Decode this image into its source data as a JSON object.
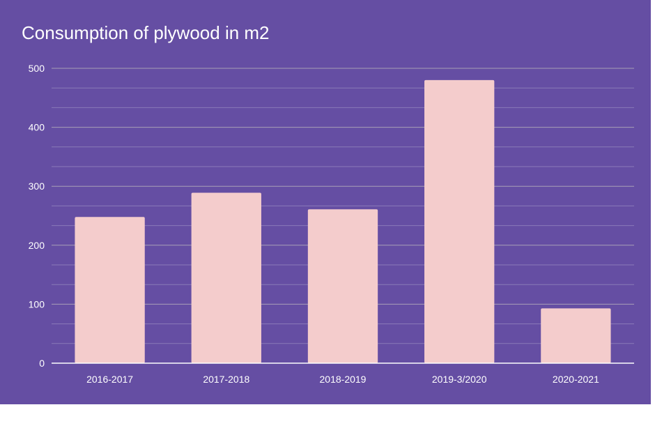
{
  "chart_data": {
    "type": "bar",
    "title": "Consumption of plywood in m2",
    "categories": [
      "2016-2017",
      "2017-2018",
      "2018-2019",
      "2019-3/2020",
      "2020-2021"
    ],
    "values": [
      248,
      289,
      261,
      480,
      93
    ],
    "ylim": [
      0,
      500
    ],
    "yticks": [
      0,
      100,
      200,
      300,
      400,
      500
    ],
    "minor_step": 33.333,
    "grid": true,
    "xlabel": "",
    "ylabel": "",
    "colors": {
      "background": "#654ea3",
      "bar": "#f4cccc",
      "major_grid": "#a89fb6",
      "minor_grid": "#8a7ab8",
      "axis": "#ffffff",
      "text": "#ffffff"
    }
  }
}
